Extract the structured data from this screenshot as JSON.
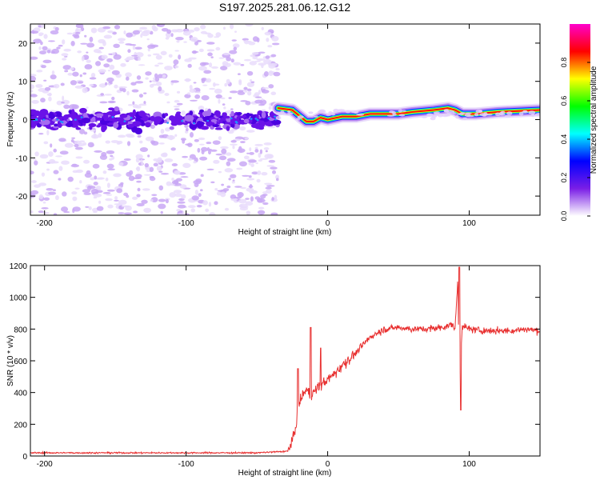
{
  "figure_title": "S197.2025.281.06.12.G12",
  "chart_data": [
    {
      "type": "heatmap",
      "title": "S197.2025.281.06.12.G12",
      "xlabel": "Height of straight line (km)",
      "ylabel": "Frequency (Hz)",
      "xlim": [
        -210,
        150
      ],
      "ylim": [
        -25,
        25
      ],
      "xticks": [
        -200,
        -100,
        0,
        100
      ],
      "yticks": [
        -20,
        -10,
        0,
        10,
        20
      ],
      "xtick_labels": [
        "-200",
        "-100",
        "0",
        "100"
      ],
      "ytick_labels": [
        "-20",
        "-10",
        "0",
        "10",
        "20"
      ],
      "noise_region_end_km": -35,
      "ridge": [
        {
          "x": -35,
          "y": 3.0
        },
        {
          "x": -25,
          "y": 2.5
        },
        {
          "x": -20,
          "y": 1.0
        },
        {
          "x": -15,
          "y": -0.5
        },
        {
          "x": -10,
          "y": -0.5
        },
        {
          "x": -5,
          "y": 0.5
        },
        {
          "x": 0,
          "y": 0.0
        },
        {
          "x": 10,
          "y": 0.8
        },
        {
          "x": 20,
          "y": 0.8
        },
        {
          "x": 30,
          "y": 1.5
        },
        {
          "x": 50,
          "y": 1.5
        },
        {
          "x": 60,
          "y": 2.0
        },
        {
          "x": 75,
          "y": 2.5
        },
        {
          "x": 85,
          "y": 3.0
        },
        {
          "x": 90,
          "y": 2.5
        },
        {
          "x": 95,
          "y": 1.5
        },
        {
          "x": 105,
          "y": 1.5
        },
        {
          "x": 120,
          "y": 2.0
        },
        {
          "x": 150,
          "y": 2.5
        }
      ],
      "colorbar": {
        "label": "Normalized spectral amplitude",
        "range": [
          0,
          1
        ],
        "ticks": [
          0.0,
          0.2,
          0.4,
          0.6,
          0.8
        ],
        "tick_labels": [
          "0.0",
          "0.2",
          "0.4",
          "0.6",
          "0.8"
        ],
        "colors": [
          "#ffffff",
          "#7a1ee6",
          "#0000ff",
          "#00ffff",
          "#00ff00",
          "#ffff00",
          "#ff0000",
          "#ff00cc"
        ]
      }
    },
    {
      "type": "line",
      "xlabel": "Height of straight line (km)",
      "ylabel": "SNR (10 * v/v)",
      "xlim": [
        -210,
        150
      ],
      "ylim": [
        0,
        1200
      ],
      "xticks": [
        -200,
        -100,
        0,
        100
      ],
      "yticks": [
        0,
        200,
        400,
        600,
        800,
        1000,
        1200
      ],
      "xtick_labels": [
        "-200",
        "-100",
        "0",
        "100"
      ],
      "ytick_labels": [
        "0",
        "200",
        "400",
        "600",
        "800",
        "1000",
        "1200"
      ],
      "color": "#e83030",
      "series": [
        {
          "name": "SNR",
          "x": [
            -210,
            -100,
            -50,
            -28,
            -23,
            -21,
            -18,
            -15,
            -12,
            -10,
            -5,
            0,
            5,
            10,
            15,
            20,
            25,
            30,
            40,
            50,
            60,
            70,
            80,
            85,
            88,
            90,
            92,
            93,
            95,
            100,
            110,
            120,
            130,
            140,
            150
          ],
          "values": [
            20,
            20,
            20,
            30,
            150,
            300,
            380,
            420,
            380,
            400,
            450,
            480,
            520,
            570,
            610,
            650,
            700,
            750,
            800,
            810,
            800,
            800,
            810,
            820,
            830,
            800,
            1120,
            420,
            820,
            800,
            790,
            790,
            790,
            800,
            790
          ],
          "spikes": [
            {
              "x": -21,
              "value": 550
            },
            {
              "x": -12,
              "value": 810
            },
            {
              "x": -5,
              "value": 680
            },
            {
              "x": 93,
              "value": 1190
            },
            {
              "x": 94,
              "value": 290
            }
          ]
        }
      ]
    }
  ]
}
